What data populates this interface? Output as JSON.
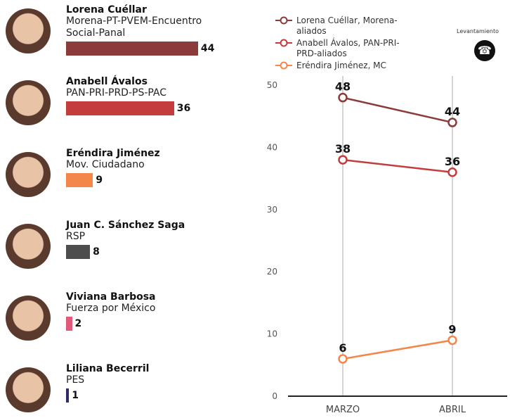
{
  "chart_data": [
    {
      "type": "bar",
      "categories": [
        "Lorena Cuéllar",
        "Anabell Ávalos",
        "Eréndira Jiménez",
        "Juan C. Sánchez Saga",
        "Viviana Barbosa",
        "Liliana Becerril"
      ],
      "parties": [
        "Morena-PT-PVEM-Encuentro Social-Panal",
        "PAN-PRI-PRD-PS-PAC",
        "Mov. Ciudadano",
        "RSP",
        "Fuerza por México",
        "PES"
      ],
      "values": [
        44,
        36,
        9,
        8,
        2,
        1
      ],
      "colors": [
        "#8a3b3a",
        "#c23d3b",
        "#f5864a",
        "#4d4d4d",
        "#e25a7a",
        "#2c2c6c"
      ]
    },
    {
      "type": "line",
      "categories": [
        "MARZO",
        "ABRIL"
      ],
      "series": [
        {
          "name": "Lorena Cuéllar, Morena-aliados",
          "color": "#8a3b3a",
          "values": [
            48,
            44
          ]
        },
        {
          "name": "Anabell Ávalos, PAN-PRI-PRD-aliados",
          "color": "#c23d3b",
          "values": [
            38,
            36
          ]
        },
        {
          "name": "Eréndira Jiménez, MC",
          "color": "#f5864a",
          "values": [
            6,
            9
          ]
        }
      ],
      "ylim": [
        0,
        50
      ],
      "yticks": [
        0,
        10,
        20,
        30,
        40,
        50
      ],
      "legend_note": "Levantamiento"
    }
  ]
}
